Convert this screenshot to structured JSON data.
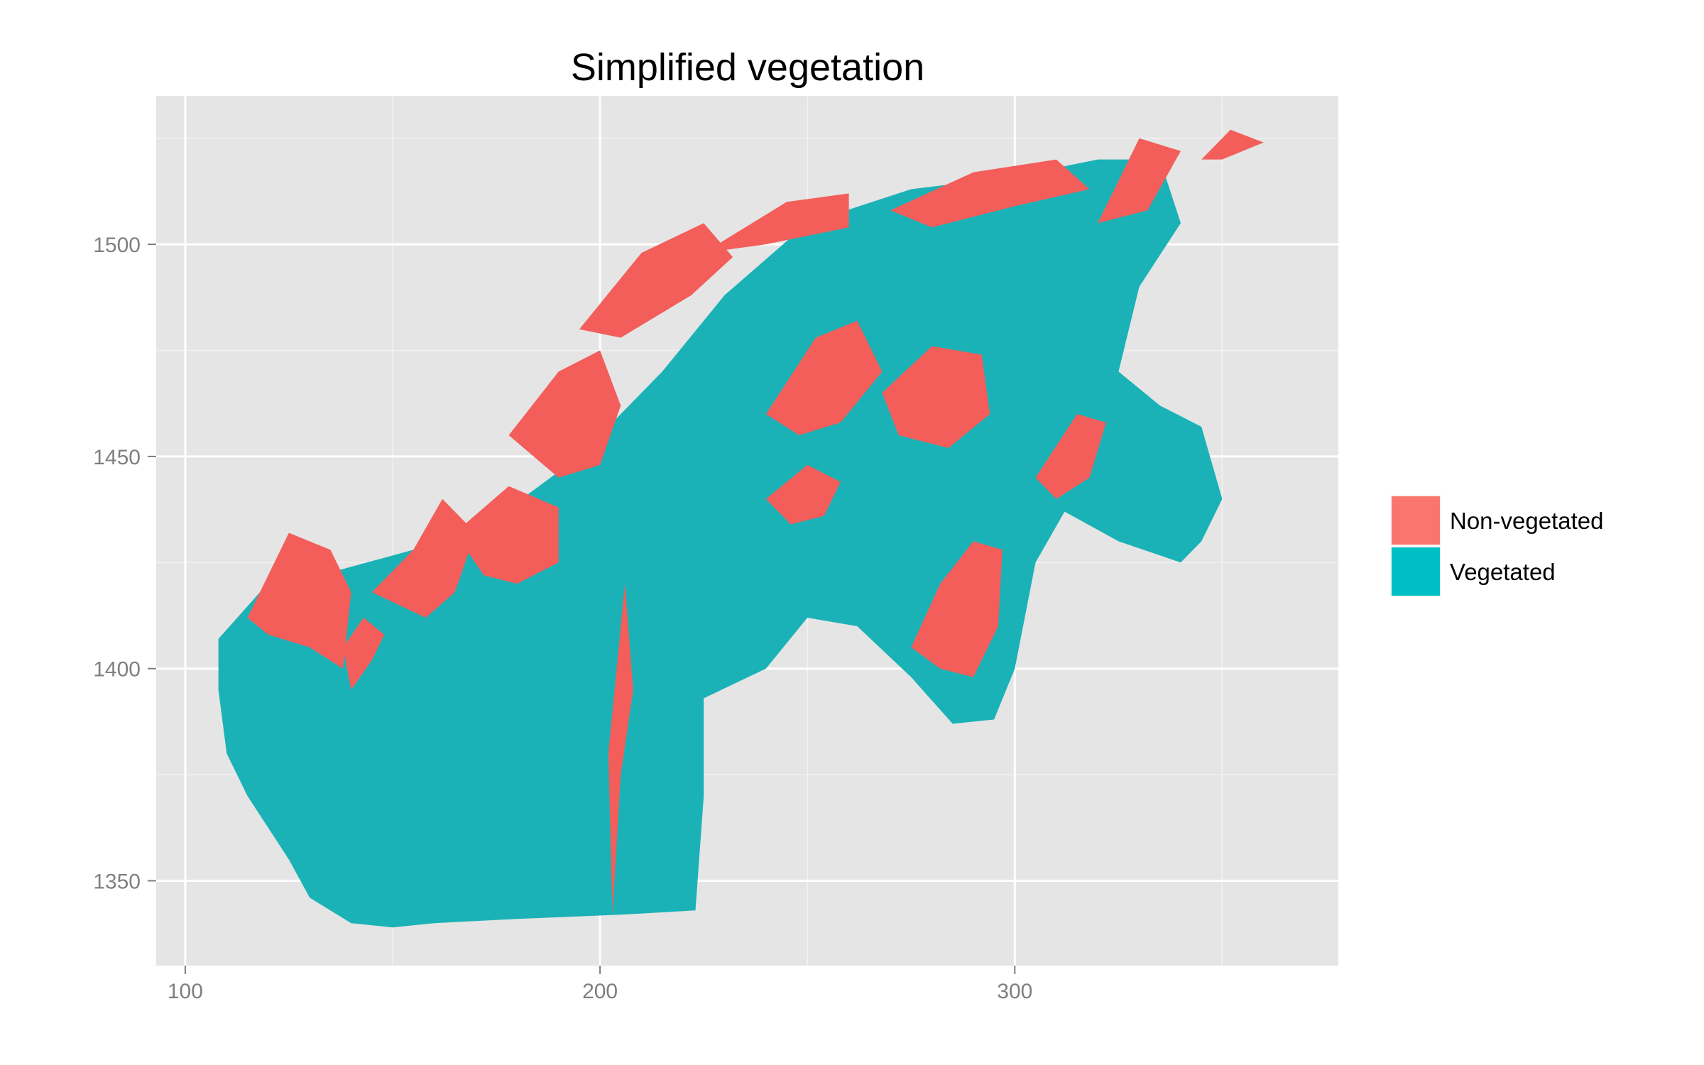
{
  "chart_data": {
    "type": "heatmap",
    "title": "Simplified vegetation",
    "xlabel": "",
    "ylabel": "",
    "xlim": [
      93,
      378
    ],
    "ylim": [
      1330,
      1535
    ],
    "x_ticks": [
      {
        "value": 100,
        "label": "100"
      },
      {
        "value": 200,
        "label": "200"
      },
      {
        "value": 300,
        "label": "300"
      }
    ],
    "y_ticks": [
      {
        "value": 1350,
        "label": "1350"
      },
      {
        "value": 1400,
        "label": "1400"
      },
      {
        "value": 1450,
        "label": "1450"
      },
      {
        "value": 1500,
        "label": "1500"
      }
    ],
    "grid": true,
    "legend_position": "right",
    "legend": [
      {
        "label": "Non-vegetated",
        "color": "#F8766D"
      },
      {
        "label": "Vegetated",
        "color": "#00BFC4"
      }
    ],
    "panel_background": "#E5E5E5",
    "series": [
      {
        "name": "Vegetated",
        "color": "#1AB2B7",
        "regions": [
          [
            [
              108,
              1407
            ],
            [
              118,
              1418
            ],
            [
              140,
              1424
            ],
            [
              170,
              1432
            ],
            [
              195,
              1450
            ],
            [
              215,
              1470
            ],
            [
              230,
              1488
            ],
            [
              250,
              1505
            ],
            [
              275,
              1513
            ],
            [
              300,
              1516
            ],
            [
              320,
              1520
            ],
            [
              335,
              1520
            ],
            [
              340,
              1505
            ],
            [
              330,
              1490
            ],
            [
              325,
              1470
            ],
            [
              335,
              1462
            ],
            [
              345,
              1457
            ],
            [
              350,
              1440
            ],
            [
              345,
              1430
            ],
            [
              340,
              1425
            ],
            [
              325,
              1430
            ],
            [
              312,
              1437
            ],
            [
              305,
              1425
            ],
            [
              300,
              1400
            ],
            [
              295,
              1388
            ],
            [
              285,
              1387
            ],
            [
              275,
              1398
            ],
            [
              262,
              1410
            ],
            [
              250,
              1412
            ],
            [
              240,
              1400
            ],
            [
              225,
              1393
            ],
            [
              225,
              1370
            ],
            [
              223,
              1343
            ],
            [
              205,
              1342
            ],
            [
              180,
              1341
            ],
            [
              160,
              1340
            ],
            [
              150,
              1339
            ],
            [
              140,
              1340
            ],
            [
              130,
              1346
            ],
            [
              125,
              1355
            ],
            [
              115,
              1370
            ],
            [
              110,
              1380
            ],
            [
              108,
              1395
            ]
          ]
        ]
      },
      {
        "name": "Non-vegetated",
        "color": "#F35E5A",
        "regions": [
          [
            [
              115,
              1412
            ],
            [
              125,
              1432
            ],
            [
              135,
              1428
            ],
            [
              140,
              1418
            ],
            [
              138,
              1400
            ],
            [
              130,
              1405
            ],
            [
              120,
              1408
            ]
          ],
          [
            [
              145,
              1418
            ],
            [
              155,
              1428
            ],
            [
              162,
              1440
            ],
            [
              170,
              1432
            ],
            [
              165,
              1418
            ],
            [
              158,
              1412
            ]
          ],
          [
            [
              165,
              1432
            ],
            [
              178,
              1443
            ],
            [
              190,
              1438
            ],
            [
              190,
              1425
            ],
            [
              180,
              1420
            ],
            [
              172,
              1422
            ]
          ],
          [
            [
              178,
              1455
            ],
            [
              190,
              1470
            ],
            [
              200,
              1475
            ],
            [
              205,
              1462
            ],
            [
              200,
              1448
            ],
            [
              190,
              1445
            ]
          ],
          [
            [
              195,
              1480
            ],
            [
              210,
              1498
            ],
            [
              225,
              1505
            ],
            [
              232,
              1497
            ],
            [
              222,
              1488
            ],
            [
              205,
              1478
            ]
          ],
          [
            [
              225,
              1498
            ],
            [
              245,
              1510
            ],
            [
              260,
              1512
            ],
            [
              260,
              1504
            ],
            [
              240,
              1500
            ]
          ],
          [
            [
              270,
              1508
            ],
            [
              290,
              1517
            ],
            [
              310,
              1520
            ],
            [
              318,
              1513
            ],
            [
              300,
              1509
            ],
            [
              280,
              1504
            ]
          ],
          [
            [
              320,
              1505
            ],
            [
              330,
              1525
            ],
            [
              340,
              1522
            ],
            [
              332,
              1508
            ]
          ],
          [
            [
              345,
              1520
            ],
            [
              352,
              1527
            ],
            [
              360,
              1524
            ],
            [
              350,
              1520
            ]
          ],
          [
            [
              240,
              1460
            ],
            [
              252,
              1478
            ],
            [
              262,
              1482
            ],
            [
              268,
              1470
            ],
            [
              258,
              1458
            ],
            [
              248,
              1455
            ]
          ],
          [
            [
              268,
              1465
            ],
            [
              280,
              1476
            ],
            [
              292,
              1474
            ],
            [
              294,
              1460
            ],
            [
              284,
              1452
            ],
            [
              272,
              1455
            ]
          ],
          [
            [
              240,
              1440
            ],
            [
              250,
              1448
            ],
            [
              258,
              1444
            ],
            [
              254,
              1436
            ],
            [
              246,
              1434
            ]
          ],
          [
            [
              305,
              1445
            ],
            [
              315,
              1460
            ],
            [
              322,
              1458
            ],
            [
              318,
              1445
            ],
            [
              310,
              1440
            ]
          ],
          [
            [
              275,
              1405
            ],
            [
              282,
              1420
            ],
            [
              290,
              1430
            ],
            [
              297,
              1428
            ],
            [
              296,
              1410
            ],
            [
              290,
              1398
            ],
            [
              282,
              1400
            ]
          ],
          [
            [
              203,
              1342
            ],
            [
              205,
              1375
            ],
            [
              208,
              1395
            ],
            [
              206,
              1420
            ],
            [
              202,
              1380
            ]
          ],
          [
            [
              140,
              1395
            ],
            [
              145,
              1402
            ],
            [
              148,
              1408
            ],
            [
              143,
              1412
            ],
            [
              138,
              1405
            ]
          ]
        ]
      }
    ]
  }
}
